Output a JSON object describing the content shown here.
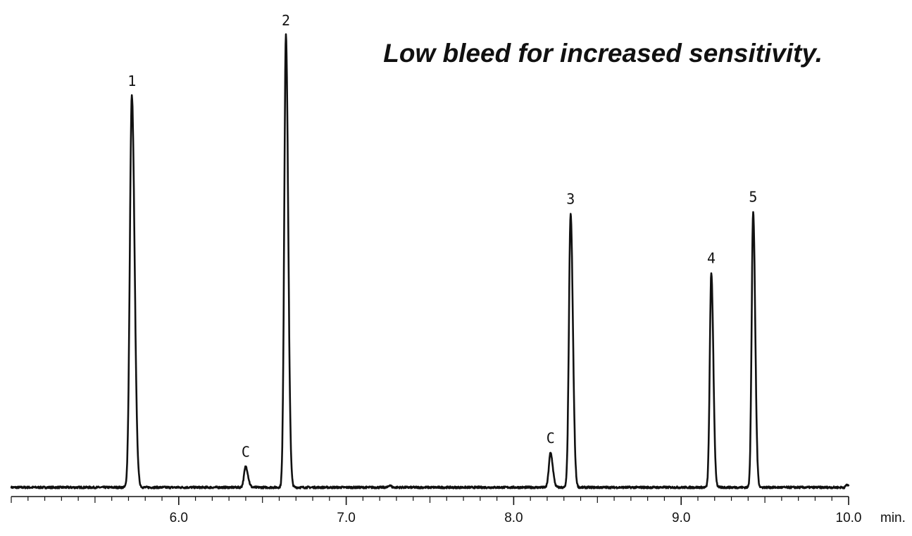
{
  "chart_data": {
    "type": "line",
    "title": "Low bleed for increased sensitivity.",
    "xlabel": "min.",
    "ylabel": "",
    "xlim": [
      5.0,
      10.0
    ],
    "ylim": [
      0,
      100
    ],
    "grid": false,
    "legend": "none",
    "x_ticks_major": [
      6.0,
      7.0,
      8.0,
      9.0,
      10.0
    ],
    "x_tick_labels": [
      "6.0",
      "7.0",
      "8.0",
      "9.0",
      "10.0"
    ],
    "minor_tick_step": 0.1,
    "peaks": [
      {
        "label": "1",
        "rt": 5.72,
        "height": 86.6,
        "width": 0.012
      },
      {
        "label": "C",
        "rt": 6.4,
        "height": 4.6,
        "width": 0.01
      },
      {
        "label": "2",
        "rt": 6.64,
        "height": 100.0,
        "width": 0.01
      },
      {
        "label": "",
        "rt": 7.26,
        "height": 0.5,
        "width": 0.006
      },
      {
        "label": "C",
        "rt": 8.22,
        "height": 7.6,
        "width": 0.01
      },
      {
        "label": "3",
        "rt": 8.34,
        "height": 60.5,
        "width": 0.01
      },
      {
        "label": "4",
        "rt": 9.18,
        "height": 47.4,
        "width": 0.009
      },
      {
        "label": "5",
        "rt": 9.43,
        "height": 61.0,
        "width": 0.009
      },
      {
        "label": "",
        "rt": 9.99,
        "height": 0.6,
        "width": 0.006
      }
    ],
    "line_color": "#111111"
  }
}
